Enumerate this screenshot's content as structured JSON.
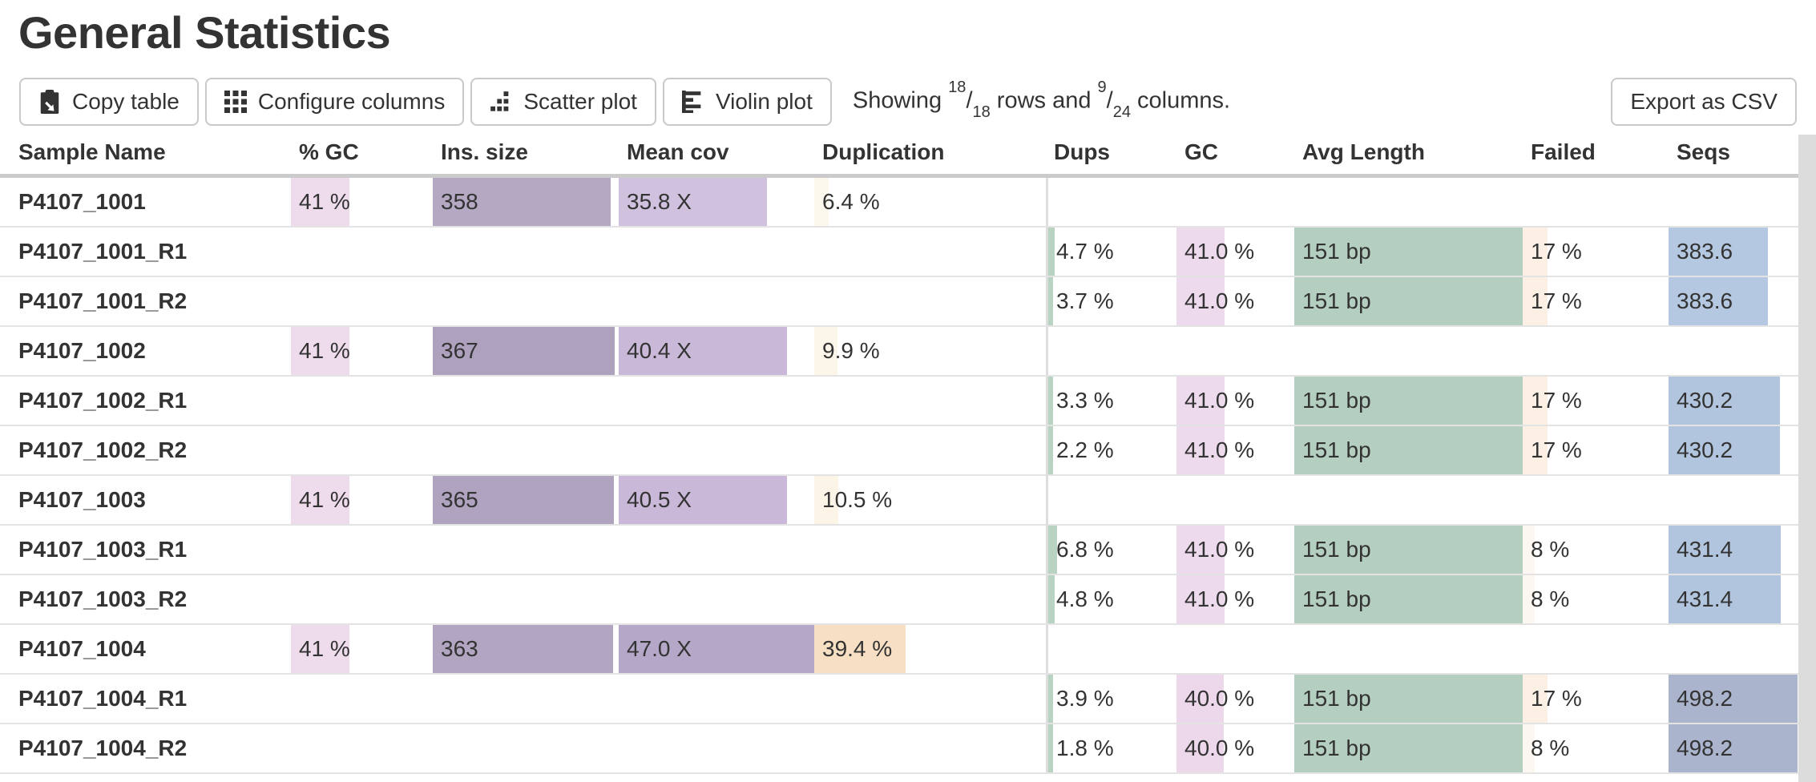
{
  "page": {
    "title": "General Statistics"
  },
  "toolbar": {
    "buttons": [
      {
        "name": "copy-table-button",
        "icon": "clipboard-icon",
        "label": "Copy table"
      },
      {
        "name": "configure-columns-button",
        "icon": "grid-icon",
        "label": "Configure columns"
      },
      {
        "name": "scatter-plot-button",
        "icon": "scatter-plot-icon",
        "label": "Scatter plot"
      },
      {
        "name": "violin-plot-button",
        "icon": "violin-plot-icon",
        "label": "Violin plot"
      }
    ],
    "showing": {
      "word_showing": "Showing ",
      "rows_shown": "18",
      "rows_total": "18",
      "slash": "/",
      "words_rows_and": " rows and ",
      "cols_shown": "9",
      "cols_total": "24",
      "word_columns": " columns."
    },
    "export_label": "Export as CSV"
  },
  "table": {
    "columns": [
      {
        "id": "sample",
        "label": "Sample Name"
      },
      {
        "id": "gc_pct",
        "label": "% GC"
      },
      {
        "id": "ins_size",
        "label": "Ins. size"
      },
      {
        "id": "mean_cov",
        "label": "Mean cov"
      },
      {
        "id": "duplication",
        "label": "Duplication"
      },
      {
        "id": "dups",
        "label": "Dups"
      },
      {
        "id": "gc",
        "label": "GC"
      },
      {
        "id": "avg_length",
        "label": "Avg Length"
      },
      {
        "id": "failed",
        "label": "Failed"
      },
      {
        "id": "seqs",
        "label": "Seqs"
      }
    ],
    "rows": [
      {
        "cells": {
          "sample": {
            "text": "P4107_1001"
          },
          "gc_pct": {
            "text": "41 %",
            "bar_pct": 41,
            "bar_color": "#eedbeb"
          },
          "ins_size": {
            "text": "358",
            "bar_pct": 95.5,
            "bar_color": "#b4a8c3"
          },
          "mean_cov": {
            "text": "35.8 X",
            "bar_pct": 76,
            "bar_color": "#d0c2de"
          },
          "duplication": {
            "text": "6.4 %",
            "bar_pct": 6.4,
            "bar_color": "#fdf8ee"
          }
        }
      },
      {
        "cells": {
          "sample": {
            "text": "P4107_1001_R1"
          },
          "dups": {
            "text": "4.7 %",
            "bar_pct": 4.7,
            "bar_color": "#b9d3c3"
          },
          "gc": {
            "text": "41.0 %",
            "bar_pct": 41,
            "bar_color": "#eddaec"
          },
          "avg_length": {
            "text": "151 bp",
            "bar_pct": 100,
            "bar_color": "#b4cec0"
          },
          "failed": {
            "text": "17 %",
            "bar_pct": 17,
            "bar_color": "#fcefe3"
          },
          "seqs": {
            "text": "383.6",
            "bar_pct": 76.7,
            "bar_color": "#b5c8e1"
          }
        }
      },
      {
        "cells": {
          "sample": {
            "text": "P4107_1001_R2"
          },
          "dups": {
            "text": "3.7 %",
            "bar_pct": 3.7,
            "bar_color": "#b9d3c3"
          },
          "gc": {
            "text": "41.0 %",
            "bar_pct": 41,
            "bar_color": "#eddaec"
          },
          "avg_length": {
            "text": "151 bp",
            "bar_pct": 100,
            "bar_color": "#b4cec0"
          },
          "failed": {
            "text": "17 %",
            "bar_pct": 17,
            "bar_color": "#fcefe3"
          },
          "seqs": {
            "text": "383.6",
            "bar_pct": 76.7,
            "bar_color": "#b5c8e1"
          }
        }
      },
      {
        "cells": {
          "sample": {
            "text": "P4107_1002"
          },
          "gc_pct": {
            "text": "41 %",
            "bar_pct": 41,
            "bar_color": "#eedbeb"
          },
          "ins_size": {
            "text": "367",
            "bar_pct": 97.9,
            "bar_color": "#aea1bd"
          },
          "mean_cov": {
            "text": "40.4 X",
            "bar_pct": 86,
            "bar_color": "#c9b8d7"
          },
          "duplication": {
            "text": "9.9 %",
            "bar_pct": 9.9,
            "bar_color": "#fcf5e9"
          }
        }
      },
      {
        "cells": {
          "sample": {
            "text": "P4107_1002_R1"
          },
          "dups": {
            "text": "3.3 %",
            "bar_pct": 3.3,
            "bar_color": "#b9d3c3"
          },
          "gc": {
            "text": "41.0 %",
            "bar_pct": 41,
            "bar_color": "#eddaec"
          },
          "avg_length": {
            "text": "151 bp",
            "bar_pct": 100,
            "bar_color": "#b4cec0"
          },
          "failed": {
            "text": "17 %",
            "bar_pct": 17,
            "bar_color": "#fcefe3"
          },
          "seqs": {
            "text": "430.2",
            "bar_pct": 86,
            "bar_color": "#b2c5de"
          }
        }
      },
      {
        "cells": {
          "sample": {
            "text": "P4107_1002_R2"
          },
          "dups": {
            "text": "2.2 %",
            "bar_pct": 2.2,
            "bar_color": "#b9d3c3"
          },
          "gc": {
            "text": "41.0 %",
            "bar_pct": 41,
            "bar_color": "#eddaec"
          },
          "avg_length": {
            "text": "151 bp",
            "bar_pct": 100,
            "bar_color": "#b4cec0"
          },
          "failed": {
            "text": "17 %",
            "bar_pct": 17,
            "bar_color": "#fcefe3"
          },
          "seqs": {
            "text": "430.2",
            "bar_pct": 86,
            "bar_color": "#b2c5de"
          }
        }
      },
      {
        "cells": {
          "sample": {
            "text": "P4107_1003"
          },
          "gc_pct": {
            "text": "41 %",
            "bar_pct": 41,
            "bar_color": "#eedbeb"
          },
          "ins_size": {
            "text": "365",
            "bar_pct": 97.3,
            "bar_color": "#afa3bf"
          },
          "mean_cov": {
            "text": "40.5 X",
            "bar_pct": 86,
            "bar_color": "#c9b8d7"
          },
          "duplication": {
            "text": "10.5 %",
            "bar_pct": 10.5,
            "bar_color": "#fcf4e7"
          }
        }
      },
      {
        "cells": {
          "sample": {
            "text": "P4107_1003_R1"
          },
          "dups": {
            "text": "6.8 %",
            "bar_pct": 6.8,
            "bar_color": "#b9d3c3"
          },
          "gc": {
            "text": "41.0 %",
            "bar_pct": 41,
            "bar_color": "#eddaec"
          },
          "avg_length": {
            "text": "151 bp",
            "bar_pct": 100,
            "bar_color": "#b4cec0"
          },
          "failed": {
            "text": "8 %",
            "bar_pct": 8,
            "bar_color": "#fdf7f1"
          },
          "seqs": {
            "text": "431.4",
            "bar_pct": 86.3,
            "bar_color": "#b2c5de"
          }
        }
      },
      {
        "cells": {
          "sample": {
            "text": "P4107_1003_R2"
          },
          "dups": {
            "text": "4.8 %",
            "bar_pct": 4.8,
            "bar_color": "#b9d3c3"
          },
          "gc": {
            "text": "41.0 %",
            "bar_pct": 41,
            "bar_color": "#eddaec"
          },
          "avg_length": {
            "text": "151 bp",
            "bar_pct": 100,
            "bar_color": "#b4cec0"
          },
          "failed": {
            "text": "8 %",
            "bar_pct": 8,
            "bar_color": "#fdf7f1"
          },
          "seqs": {
            "text": "431.4",
            "bar_pct": 86.3,
            "bar_color": "#b2c5de"
          }
        }
      },
      {
        "cells": {
          "sample": {
            "text": "P4107_1004"
          },
          "gc_pct": {
            "text": "41 %",
            "bar_pct": 41,
            "bar_color": "#eedbeb"
          },
          "ins_size": {
            "text": "363",
            "bar_pct": 96.8,
            "bar_color": "#b1a5c1"
          },
          "mean_cov": {
            "text": "47.0 X",
            "bar_pct": 100,
            "bar_color": "#b5a7c7"
          },
          "duplication": {
            "text": "39.4 %",
            "bar_pct": 39.4,
            "bar_color": "#f6dfc3"
          }
        }
      },
      {
        "cells": {
          "sample": {
            "text": "P4107_1004_R1"
          },
          "dups": {
            "text": "3.9 %",
            "bar_pct": 3.9,
            "bar_color": "#b9d3c3"
          },
          "gc": {
            "text": "40.0 %",
            "bar_pct": 40,
            "bar_color": "#ecd8ea"
          },
          "avg_length": {
            "text": "151 bp",
            "bar_pct": 100,
            "bar_color": "#b4cec0"
          },
          "failed": {
            "text": "17 %",
            "bar_pct": 17,
            "bar_color": "#fcefe3"
          },
          "seqs": {
            "text": "498.2",
            "bar_pct": 99.6,
            "bar_color": "#aab4cd"
          }
        }
      },
      {
        "cells": {
          "sample": {
            "text": "P4107_1004_R2"
          },
          "dups": {
            "text": "1.8 %",
            "bar_pct": 1.8,
            "bar_color": "#b9d3c3"
          },
          "gc": {
            "text": "40.0 %",
            "bar_pct": 40,
            "bar_color": "#ecd8ea"
          },
          "avg_length": {
            "text": "151 bp",
            "bar_pct": 100,
            "bar_color": "#b4cec0"
          },
          "failed": {
            "text": "8 %",
            "bar_pct": 8,
            "bar_color": "#fdf7f1"
          },
          "seqs": {
            "text": "498.2",
            "bar_pct": 99.6,
            "bar_color": "#aab4cd"
          }
        }
      }
    ]
  },
  "colors": {
    "text": "#333333",
    "row_border": "#e3e3e3",
    "header_border": "#cbcbcb",
    "button_border": "#c9c9c9",
    "scrollbar": "#dcdcdc"
  }
}
